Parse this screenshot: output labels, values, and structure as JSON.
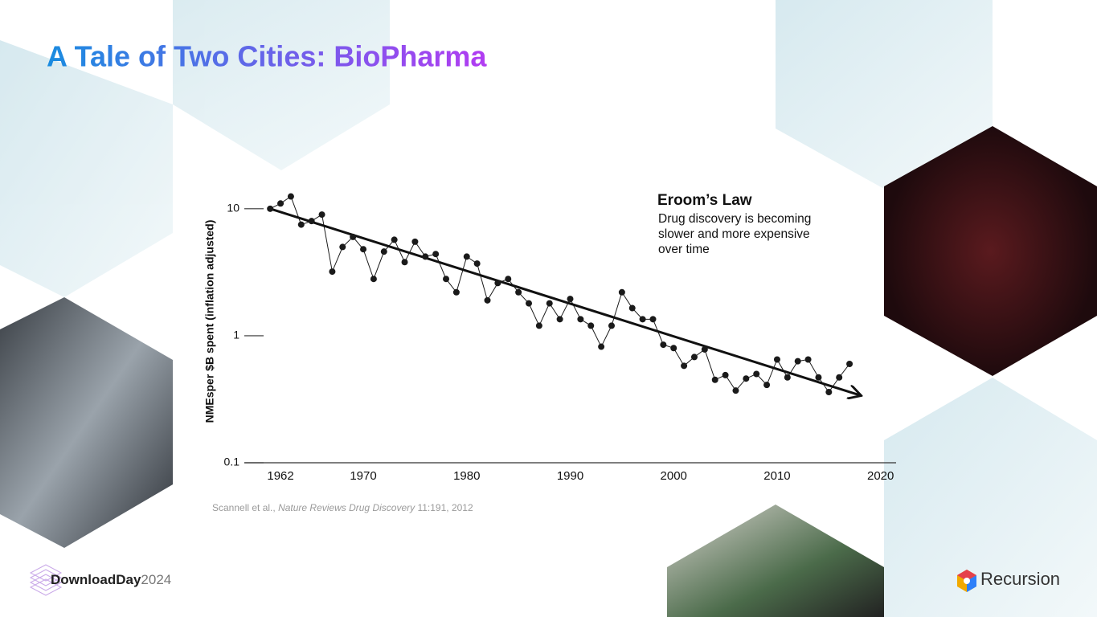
{
  "slide": {
    "title": "A Tale of Two Cities: BioPharma",
    "citation": {
      "authors": "Scannell et al.,",
      "journal": "Nature Reviews Drug Discovery",
      "details": "11:191, 2012"
    },
    "footer_brand": "DownloadDay",
    "footer_year": "2024",
    "company": "Recursion"
  },
  "chart_data": {
    "type": "line",
    "ylabel": "NMEsper $B spent (inflation adjusted)",
    "annotation": {
      "title": "Eroom’s Law",
      "lines": [
        "Drug discovery is becoming",
        "slower and more expensive",
        "over time"
      ]
    },
    "x": [
      1961,
      1962,
      1963,
      1964,
      1965,
      1966,
      1967,
      1968,
      1969,
      1970,
      1971,
      1972,
      1973,
      1974,
      1975,
      1976,
      1977,
      1978,
      1979,
      1980,
      1981,
      1982,
      1983,
      1984,
      1985,
      1986,
      1987,
      1988,
      1989,
      1990,
      1991,
      1992,
      1993,
      1994,
      1995,
      1996,
      1997,
      1998,
      1999,
      2000,
      2001,
      2002,
      2003,
      2004,
      2005,
      2006,
      2007,
      2008,
      2009,
      2010,
      2011,
      2012,
      2013,
      2014,
      2015,
      2016,
      2017
    ],
    "values": [
      10,
      11,
      12.5,
      7.5,
      8,
      9,
      3.2,
      5,
      6,
      4.8,
      2.8,
      4.6,
      5.7,
      3.8,
      5.5,
      4.2,
      4.4,
      2.8,
      2.2,
      4.2,
      3.7,
      1.9,
      2.6,
      2.8,
      2.2,
      1.8,
      1.2,
      1.8,
      1.35,
      1.95,
      1.35,
      1.2,
      0.82,
      1.2,
      2.2,
      1.65,
      1.35,
      1.35,
      0.85,
      0.8,
      0.58,
      0.68,
      0.78,
      0.45,
      0.49,
      0.37,
      0.46,
      0.5,
      0.41,
      0.65,
      0.47,
      0.63,
      0.65,
      0.47,
      0.36,
      0.47,
      0.6
    ],
    "trend": {
      "x": [
        1961,
        2018
      ],
      "values": [
        10,
        0.34
      ]
    },
    "color": "#1a1a1a",
    "ylog": true,
    "xlim": [
      1958.5,
      2021.5
    ],
    "xticks": [
      1962,
      1970,
      1980,
      1990,
      2000,
      2010,
      2020
    ],
    "ylim": [
      0.1,
      15
    ],
    "yticks": [
      0.1,
      1,
      10
    ]
  }
}
